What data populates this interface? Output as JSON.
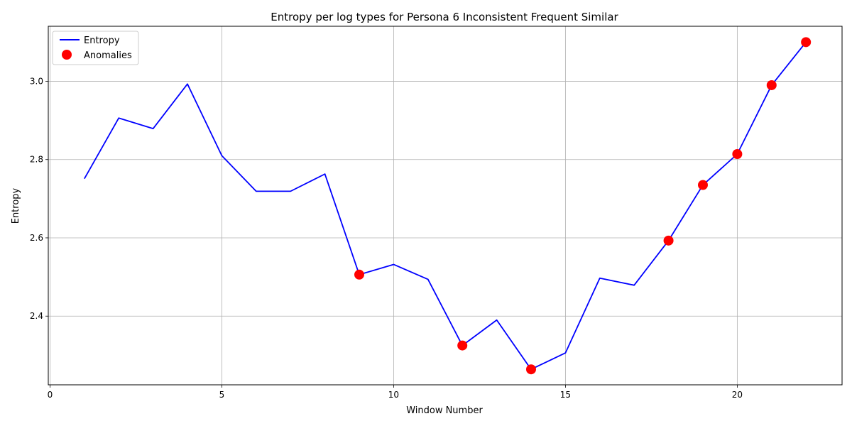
{
  "chart_data": {
    "type": "line",
    "title": "Entropy per log types for Persona 6 Inconsistent Frequent Similar",
    "xlabel": "Window Number",
    "ylabel": "Entropy",
    "xlim": [
      -0.05,
      23.05
    ],
    "ylim": [
      2.2245,
      3.1405
    ],
    "xticks": [
      0,
      5,
      10,
      15,
      20
    ],
    "yticks": [
      2.4,
      2.6,
      2.8,
      3.0
    ],
    "xtick_labels": [
      "0",
      "5",
      "10",
      "15",
      "20"
    ],
    "ytick_labels": [
      "2.4",
      "2.6",
      "2.8",
      "3.0"
    ],
    "grid": true,
    "legend_position": "top-left",
    "series": [
      {
        "name": "Entropy",
        "kind": "line",
        "color": "#0000ff",
        "x": [
          1,
          2,
          3,
          4,
          5,
          6,
          7,
          8,
          9,
          10,
          11,
          12,
          13,
          14,
          15,
          16,
          17,
          18,
          19,
          20,
          21,
          22
        ],
        "y": [
          2.751,
          2.906,
          2.879,
          2.993,
          2.81,
          2.719,
          2.719,
          2.763,
          2.506,
          2.532,
          2.494,
          2.325,
          2.39,
          2.264,
          2.306,
          2.497,
          2.479,
          2.593,
          2.735,
          2.814,
          2.99,
          3.1
        ]
      },
      {
        "name": "Anomalies",
        "kind": "scatter",
        "color": "#ff0000",
        "x": [
          9,
          12,
          14,
          18,
          19,
          20,
          21,
          22
        ],
        "y": [
          2.506,
          2.325,
          2.264,
          2.593,
          2.735,
          2.814,
          2.99,
          3.1
        ]
      }
    ]
  }
}
